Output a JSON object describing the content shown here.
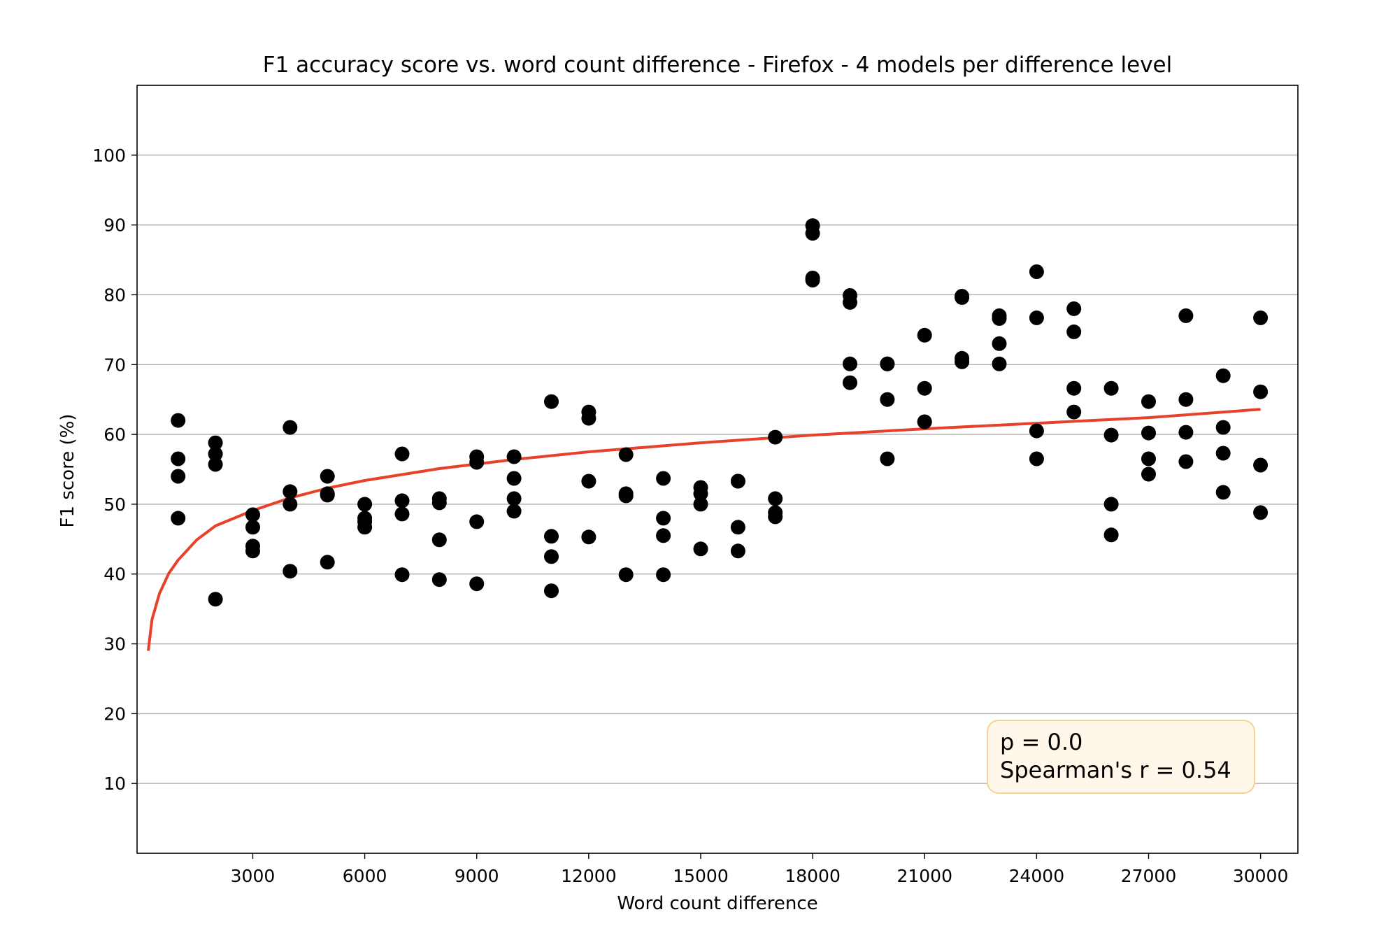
{
  "chart_data": {
    "type": "scatter",
    "title": "F1 accuracy score vs. word count difference - Firefox - 4 models per difference level",
    "xlabel": "Word count difference",
    "ylabel": "F1 score (%)",
    "xlim": [
      -100,
      31000
    ],
    "ylim": [
      0,
      110
    ],
    "xticks": [
      3000,
      6000,
      9000,
      12000,
      15000,
      18000,
      21000,
      24000,
      27000,
      30000
    ],
    "yticks": [
      10,
      20,
      30,
      40,
      50,
      60,
      70,
      80,
      90,
      100
    ],
    "grid": "horizontal",
    "point_color": "#000000",
    "fit_color": "#e8412a",
    "annotation": {
      "p_text": "p = 0.0",
      "r_text": "Spearman's r = 0.54",
      "placement": "bottom-right",
      "box_fill": "#fff7ea",
      "box_stroke": "#f5d48f"
    },
    "fit_curve": {
      "form": "logarithmic",
      "x": [
        200,
        300,
        500,
        750,
        1000,
        1500,
        2000,
        3000,
        4000,
        5000,
        6000,
        8000,
        10000,
        12000,
        15000,
        18000,
        21000,
        24000,
        27000,
        30000
      ],
      "y": [
        29,
        33.5,
        37.2,
        40.1,
        42,
        44.9,
        46.9,
        49.1,
        50.9,
        52.3,
        53.4,
        55.1,
        56.4,
        57.5,
        58.8,
        59.9,
        60.8,
        61.6,
        62.4,
        63.6
      ]
    },
    "points": [
      [
        1000,
        62
      ],
      [
        1000,
        56.5
      ],
      [
        1000,
        54
      ],
      [
        1000,
        48
      ],
      [
        2000,
        58.8
      ],
      [
        2000,
        57.2
      ],
      [
        2000,
        55.7
      ],
      [
        2000,
        36.4
      ],
      [
        3000,
        48.5
      ],
      [
        3000,
        46.7
      ],
      [
        3000,
        44
      ],
      [
        3000,
        43.3
      ],
      [
        4000,
        61
      ],
      [
        4000,
        51.8
      ],
      [
        4000,
        50
      ],
      [
        4000,
        40.4
      ],
      [
        5000,
        54
      ],
      [
        5000,
        51.5
      ],
      [
        5000,
        51.3
      ],
      [
        5000,
        41.7
      ],
      [
        6000,
        50
      ],
      [
        6000,
        48
      ],
      [
        6000,
        47.5
      ],
      [
        6000,
        46.7
      ],
      [
        7000,
        57.2
      ],
      [
        7000,
        50.5
      ],
      [
        7000,
        48.6
      ],
      [
        7000,
        39.9
      ],
      [
        8000,
        50.8
      ],
      [
        8000,
        50.2
      ],
      [
        8000,
        44.9
      ],
      [
        8000,
        39.2
      ],
      [
        9000,
        56.8
      ],
      [
        9000,
        56
      ],
      [
        9000,
        47.5
      ],
      [
        9000,
        38.6
      ],
      [
        10000,
        56.8
      ],
      [
        10000,
        53.7
      ],
      [
        10000,
        50.8
      ],
      [
        10000,
        49
      ],
      [
        11000,
        64.7
      ],
      [
        11000,
        45.4
      ],
      [
        11000,
        42.5
      ],
      [
        11000,
        37.6
      ],
      [
        12000,
        63.2
      ],
      [
        12000,
        62.3
      ],
      [
        12000,
        53.3
      ],
      [
        12000,
        45.3
      ],
      [
        13000,
        57.1
      ],
      [
        13000,
        51.5
      ],
      [
        13000,
        51.2
      ],
      [
        13000,
        39.9
      ],
      [
        14000,
        53.7
      ],
      [
        14000,
        48
      ],
      [
        14000,
        45.5
      ],
      [
        14000,
        39.9
      ],
      [
        15000,
        52.4
      ],
      [
        15000,
        51.5
      ],
      [
        15000,
        50
      ],
      [
        15000,
        43.6
      ],
      [
        16000,
        53.3
      ],
      [
        16000,
        46.7
      ],
      [
        16000,
        43.3
      ],
      [
        16000,
        53.3
      ],
      [
        17000,
        59.6
      ],
      [
        17000,
        50.8
      ],
      [
        17000,
        48.8
      ],
      [
        17000,
        48.2
      ],
      [
        18000,
        89.9
      ],
      [
        18000,
        88.8
      ],
      [
        18000,
        82.4
      ],
      [
        18000,
        82.1
      ],
      [
        19000,
        79.9
      ],
      [
        19000,
        78.9
      ],
      [
        19000,
        70.1
      ],
      [
        19000,
        67.4
      ],
      [
        20000,
        70.1
      ],
      [
        20000,
        65
      ],
      [
        20000,
        56.5
      ],
      [
        20000,
        70.1
      ],
      [
        21000,
        74.2
      ],
      [
        21000,
        66.6
      ],
      [
        21000,
        61.8
      ],
      [
        21000,
        61.8
      ],
      [
        22000,
        79.8
      ],
      [
        22000,
        79.6
      ],
      [
        22000,
        70.9
      ],
      [
        22000,
        70.4
      ],
      [
        23000,
        77
      ],
      [
        23000,
        76.6
      ],
      [
        23000,
        73
      ],
      [
        23000,
        70.1
      ],
      [
        24000,
        83.3
      ],
      [
        24000,
        76.7
      ],
      [
        24000,
        60.5
      ],
      [
        24000,
        56.5
      ],
      [
        25000,
        78
      ],
      [
        25000,
        74.7
      ],
      [
        25000,
        66.6
      ],
      [
        25000,
        63.2
      ],
      [
        26000,
        66.6
      ],
      [
        26000,
        59.9
      ],
      [
        26000,
        50
      ],
      [
        26000,
        45.6
      ],
      [
        27000,
        64.7
      ],
      [
        27000,
        60.2
      ],
      [
        27000,
        56.5
      ],
      [
        27000,
        54.3
      ],
      [
        28000,
        77
      ],
      [
        28000,
        65
      ],
      [
        28000,
        60.3
      ],
      [
        28000,
        56.1
      ],
      [
        29000,
        68.4
      ],
      [
        29000,
        61
      ],
      [
        29000,
        57.3
      ],
      [
        29000,
        51.7
      ],
      [
        30000,
        76.7
      ],
      [
        30000,
        66.1
      ],
      [
        30000,
        55.6
      ],
      [
        30000,
        48.8
      ]
    ]
  }
}
